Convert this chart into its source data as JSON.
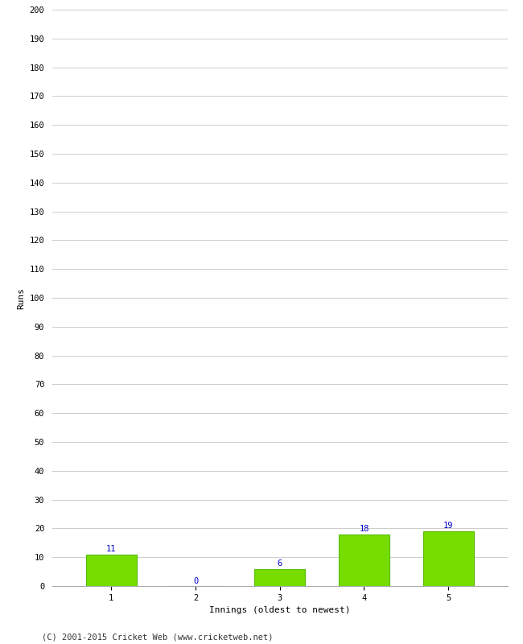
{
  "categories": [
    "1",
    "2",
    "3",
    "4",
    "5"
  ],
  "values": [
    11,
    0,
    6,
    18,
    19
  ],
  "bar_color": "#77dd00",
  "bar_edge_color": "#55bb00",
  "ylabel": "Runs",
  "xlabel": "Innings (oldest to newest)",
  "ylim": [
    0,
    200
  ],
  "yticks": [
    0,
    10,
    20,
    30,
    40,
    50,
    60,
    70,
    80,
    90,
    100,
    110,
    120,
    130,
    140,
    150,
    160,
    170,
    180,
    190,
    200
  ],
  "label_color": "#0000cc",
  "label_fontsize": 7.5,
  "axis_label_fontsize": 8,
  "tick_fontsize": 7.5,
  "footer": "(C) 2001-2015 Cricket Web (www.cricketweb.net)",
  "footer_fontsize": 7.5,
  "background_color": "#ffffff",
  "grid_color": "#cccccc",
  "bar_width": 0.6
}
